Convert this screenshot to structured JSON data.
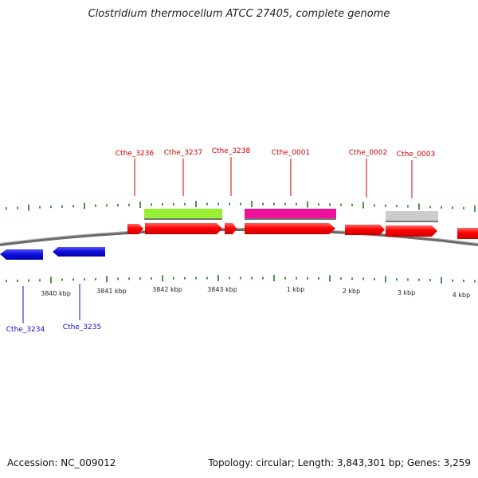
{
  "title": "Clostridium thermocellum ATCC 27405, complete genome",
  "accession_text": "Accession: NC_009012",
  "stats_text": "Topology: circular; Length: 3,843,301 bp; Genes: 3,259",
  "colors": {
    "forward": "#ff0000",
    "reverse": "#1010dd",
    "label_forward": "#cc0000",
    "label_reverse": "#1010cc",
    "tick": "#1a7a1a",
    "backbone": "#777777",
    "feature_green": "#99ee33",
    "feature_magenta": "#ee1199",
    "feature_gray": "#cccccc"
  },
  "kbp_labels": [
    "3840 kbp",
    "3841 kbp",
    "3842 kbp",
    "3843 kbp",
    "1 kbp",
    "2 kbp",
    "3 kbp",
    "4 kbp"
  ],
  "gene_labels_forward": [
    "Cthe_3236",
    "Cthe_3237",
    "Cthe_3238",
    "Cthe_0001",
    "Cthe_0002",
    "Cthe_0003"
  ],
  "gene_labels_reverse": [
    "Cthe_3234",
    "Cthe_3235"
  ],
  "features": [
    {
      "name": "feature-green",
      "color": "#99ee33"
    },
    {
      "name": "feature-magenta",
      "color": "#ee1199"
    },
    {
      "name": "feature-gray",
      "color": "#cccccc"
    }
  ]
}
